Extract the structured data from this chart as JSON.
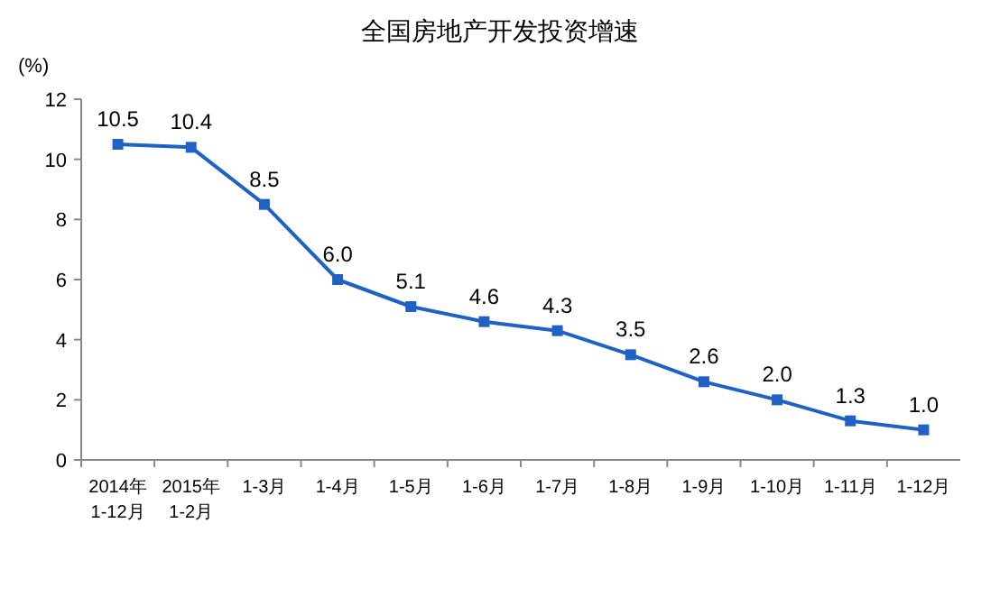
{
  "chart_data": {
    "type": "line",
    "title": "全国房地产开发投资增速",
    "ylabel": "(%)",
    "categories": [
      "2014年\n1-12月",
      "2015年\n1-2月",
      "1-3月",
      "1-4月",
      "1-5月",
      "1-6月",
      "1-7月",
      "1-8月",
      "1-9月",
      "1-10月",
      "1-11月",
      "1-12月"
    ],
    "series": [
      {
        "color": "#1f62c4",
        "values": [
          10.5,
          10.4,
          8.5,
          6.0,
          5.1,
          4.6,
          4.3,
          3.5,
          2.6,
          2.0,
          1.3,
          1.0
        ],
        "value_labels": [
          "10.5",
          "10.4",
          "8.5",
          "6.0",
          "5.1",
          "4.6",
          "4.3",
          "3.5",
          "2.6",
          "2.0",
          "1.3",
          "1.0"
        ]
      }
    ],
    "ylim": [
      0,
      12
    ],
    "yticks": [
      0,
      2,
      4,
      6,
      8,
      10,
      12
    ],
    "marker": "square",
    "grid": false
  }
}
